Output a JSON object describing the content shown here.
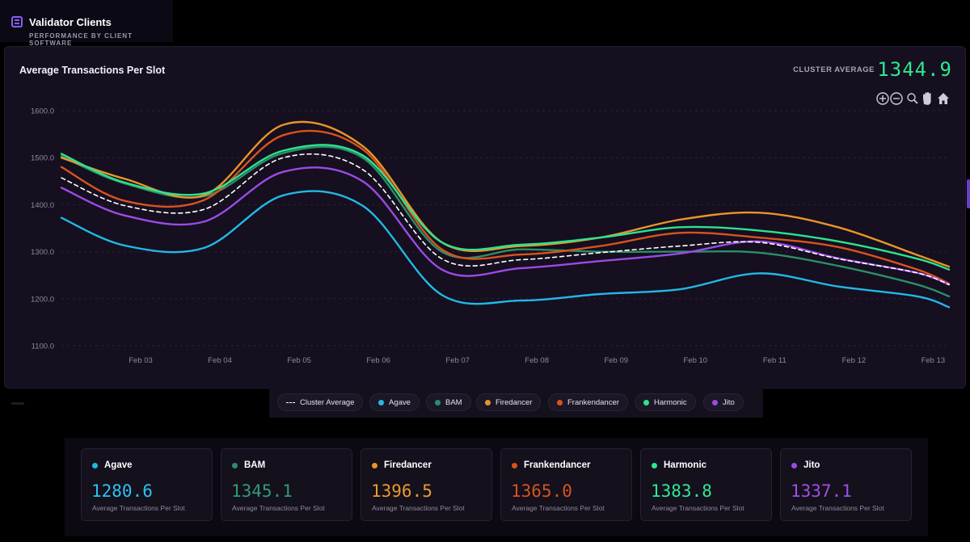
{
  "header": {
    "title": "Validator Clients",
    "subtitle": "PERFORMANCE BY CLIENT SOFTWARE",
    "icon": "dashboard-icon"
  },
  "chart_panel": {
    "cluster_average_label": "CLUSTER AVERAGE",
    "cluster_average_value": "1344.9",
    "toolbar_icons": [
      "zoom-in-icon",
      "zoom-out-icon",
      "magnify-icon",
      "pan-hand-icon",
      "home-icon"
    ]
  },
  "chart_data": {
    "type": "line",
    "title": "Average Transactions Per Slot",
    "xlabel": "",
    "ylabel": "",
    "ylim": [
      1100,
      1600
    ],
    "xlim": [
      0,
      11.2
    ],
    "yticks": [
      "1100.0",
      "1200.0",
      "1300.0",
      "1400.0",
      "1500.0",
      "1600.0"
    ],
    "xtick_labels": [
      "Feb 03",
      "Feb 04",
      "Feb 05",
      "Feb 06",
      "Feb 07",
      "Feb 08",
      "Feb 09",
      "Feb 10",
      "Feb 11",
      "Feb 12",
      "Feb 13"
    ],
    "grid": true,
    "x": [
      0,
      0.8,
      1.8,
      2.8,
      3.8,
      4.8,
      5.8,
      6.8,
      7.8,
      8.8,
      9.8,
      10.8,
      11.2
    ],
    "series": [
      {
        "name": "Cluster Average",
        "color": "#ffffff",
        "dashed": true,
        "values": [
          1457,
          1398,
          1390,
          1500,
          1475,
          1285,
          1283,
          1298,
          1312,
          1320,
          1285,
          1255,
          1230
        ]
      },
      {
        "name": "Agave",
        "color": "#22b8e6",
        "values": [
          1372,
          1313,
          1308,
          1420,
          1398,
          1208,
          1196,
          1210,
          1220,
          1254,
          1226,
          1205,
          1182
        ]
      },
      {
        "name": "BAM",
        "color": "#2a8f6a",
        "values": [
          1503,
          1445,
          1418,
          1510,
          1500,
          1300,
          1305,
          1300,
          1300,
          1298,
          1270,
          1230,
          1205
        ]
      },
      {
        "name": "Firedancer",
        "color": "#e8952a",
        "values": [
          1500,
          1455,
          1420,
          1570,
          1525,
          1320,
          1312,
          1330,
          1368,
          1383,
          1352,
          1293,
          1268
        ]
      },
      {
        "name": "Frankendancer",
        "color": "#d9531e",
        "values": [
          1480,
          1408,
          1410,
          1548,
          1518,
          1305,
          1294,
          1312,
          1340,
          1330,
          1310,
          1262,
          1232
        ]
      },
      {
        "name": "Harmonic",
        "color": "#2de38f",
        "values": [
          1508,
          1447,
          1424,
          1515,
          1505,
          1320,
          1315,
          1330,
          1352,
          1345,
          1322,
          1285,
          1262
        ]
      },
      {
        "name": "Jito",
        "color": "#9b4ae6",
        "values": [
          1436,
          1377,
          1364,
          1470,
          1450,
          1262,
          1265,
          1280,
          1296,
          1322,
          1286,
          1255,
          1230
        ]
      }
    ]
  },
  "legend": {
    "items": [
      {
        "label": "Cluster Average",
        "color": "#ffffff",
        "dashed": true
      },
      {
        "label": "Agave",
        "color": "#22b8e6"
      },
      {
        "label": "BAM",
        "color": "#2a8f6a"
      },
      {
        "label": "Firedancer",
        "color": "#e8952a"
      },
      {
        "label": "Frankendancer",
        "color": "#d9531e"
      },
      {
        "label": "Harmonic",
        "color": "#2de38f"
      },
      {
        "label": "Jito",
        "color": "#9b4ae6"
      }
    ]
  },
  "cards": [
    {
      "name": "Agave",
      "value": "1280.6",
      "sub": "Average Transactions Per Slot",
      "color": "#22b8e6",
      "value_color": "#2cc3ef"
    },
    {
      "name": "BAM",
      "value": "1345.1",
      "sub": "Average Transactions Per Slot",
      "color": "#2a8f6a",
      "value_color": "#2f9c74"
    },
    {
      "name": "Firedancer",
      "value": "1396.5",
      "sub": "Average Transactions Per Slot",
      "color": "#e8952a",
      "value_color": "#eb9a30"
    },
    {
      "name": "Frankendancer",
      "value": "1365.0",
      "sub": "Average Transactions Per Slot",
      "color": "#d9531e",
      "value_color": "#d5541f"
    },
    {
      "name": "Harmonic",
      "value": "1383.8",
      "sub": "Average Transactions Per Slot",
      "color": "#2de38f",
      "value_color": "#2fe894"
    },
    {
      "name": "Jito",
      "value": "1337.1",
      "sub": "Average Transactions Per Slot",
      "color": "#9b4ae6",
      "value_color": "#9e4fe8"
    }
  ]
}
